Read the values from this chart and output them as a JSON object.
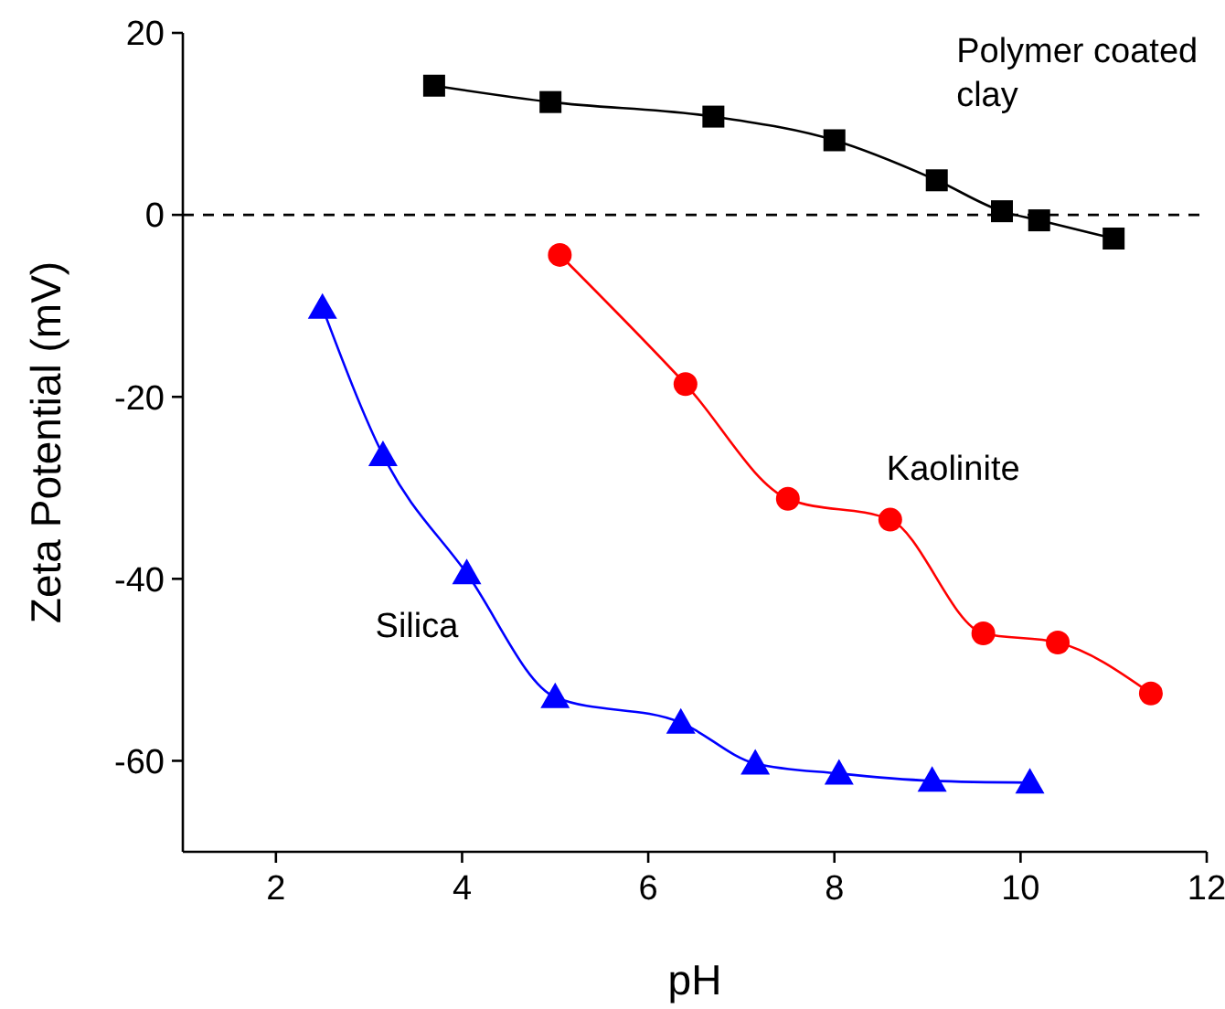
{
  "chart_data": {
    "type": "line",
    "xlabel": "pH",
    "ylabel": "Zeta Potential (mV)",
    "xlim": [
      1,
      12
    ],
    "xticks": [
      2,
      4,
      6,
      8,
      10,
      12
    ],
    "ylim": [
      -70,
      20
    ],
    "yticks": [
      -60,
      -40,
      -20,
      0,
      20
    ],
    "grid": false,
    "legend": false,
    "ref_lines": [
      {
        "axis": "y",
        "value": 0,
        "color": "#000000",
        "line_style": "dashed"
      }
    ],
    "series": [
      {
        "name": "Polymer coated clay",
        "color": "#000000",
        "marker": "square",
        "x": [
          3.7,
          4.95,
          6.7,
          8.0,
          9.1,
          9.8,
          10.2,
          11.0
        ],
        "values": [
          14.2,
          12.4,
          10.8,
          8.2,
          3.8,
          0.4,
          -0.6,
          -2.6
        ]
      },
      {
        "name": "Kaolinite",
        "color": "#ff0000",
        "marker": "circle",
        "x": [
          5.05,
          6.4,
          7.5,
          8.6,
          9.6,
          10.4,
          11.4
        ],
        "values": [
          -4.4,
          -18.6,
          -31.2,
          -33.5,
          -46,
          -47,
          -52.6
        ]
      },
      {
        "name": "Silica",
        "color": "#0000ff",
        "marker": "triangle",
        "x": [
          2.5,
          3.15,
          4.05,
          5.0,
          6.35,
          7.15,
          8.05,
          9.05,
          10.1
        ],
        "values": [
          -10.2,
          -26.4,
          -39.4,
          -53,
          -55.8,
          -60.3,
          -61.4,
          -62.2,
          -62.4
        ]
      }
    ]
  }
}
